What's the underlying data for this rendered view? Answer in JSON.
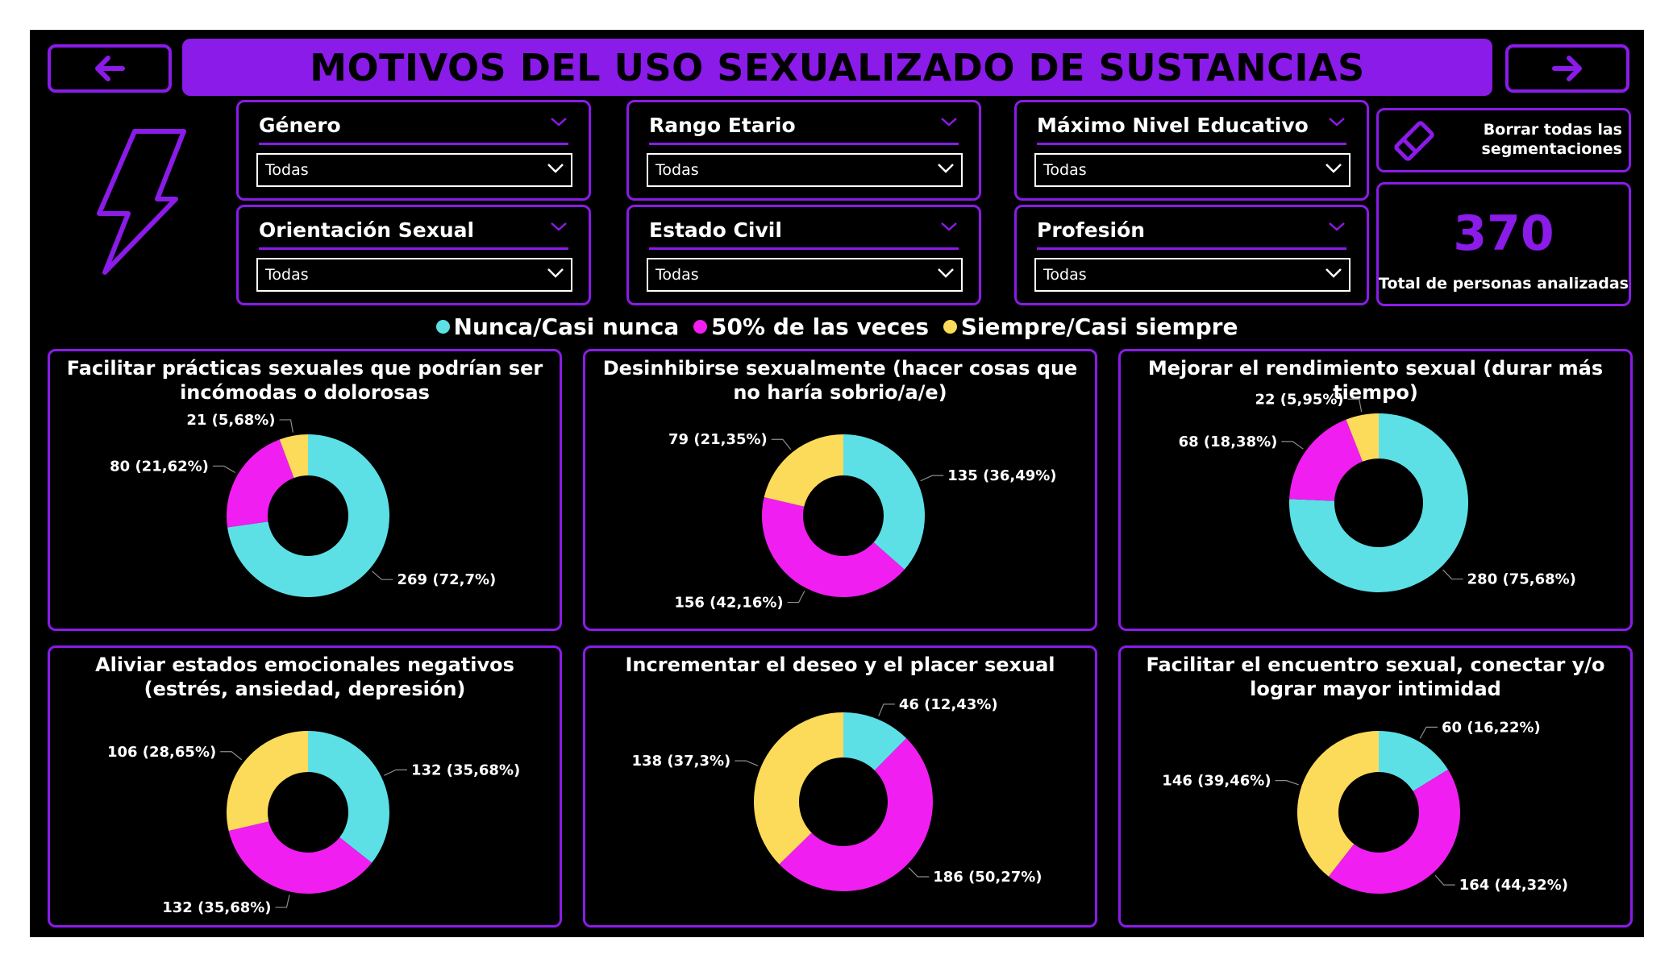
{
  "header": {
    "title": "MOTIVOS DEL USO SEXUALIZADO DE SUSTANCIAS",
    "back_icon": "arrow-left-icon",
    "forward_icon": "arrow-right-icon",
    "logo_icon": "lightning-bolt-icon"
  },
  "filters": [
    {
      "label": "Género",
      "value": "Todas"
    },
    {
      "label": "Rango Etario",
      "value": "Todas"
    },
    {
      "label": "Máximo Nivel Educativo",
      "value": "Todas"
    },
    {
      "label": "Orientación Sexual",
      "value": "Todas"
    },
    {
      "label": "Estado Civil",
      "value": "Todas"
    },
    {
      "label": "Profesión",
      "value": "Todas"
    }
  ],
  "clear_button": {
    "label_line1": "Borrar todas las",
    "label_line2": "segmentaciones",
    "icon": "eraser-icon"
  },
  "kpi": {
    "value": "370",
    "label": "Total de personas analizadas"
  },
  "colors": {
    "accent": "#8a1be8",
    "nunca": "#5ce0e6",
    "mitad": "#f01ef0",
    "siempre": "#fcdb5a",
    "background": "#000000"
  },
  "legend": [
    {
      "label": "Nunca/Casi nunca",
      "color": "#5ce0e6"
    },
    {
      "label": "50% de las veces",
      "color": "#f01ef0"
    },
    {
      "label": "Siempre/Casi siempre",
      "color": "#fcdb5a"
    }
  ],
  "chart_data": [
    {
      "type": "pie",
      "title": "Facilitar prácticas sexuales que podrían ser incómodas o dolorosas",
      "categories": [
        "Nunca/Casi nunca",
        "50% de las veces",
        "Siempre/Casi siempre"
      ],
      "values": [
        269,
        80,
        21
      ],
      "labels": [
        "269 (72,7%)",
        "80 (21,62%)",
        "21 (5,68%)"
      ]
    },
    {
      "type": "pie",
      "title": "Desinhibirse sexualmente (hacer cosas que no haría sobrio/a/e)",
      "categories": [
        "Nunca/Casi nunca",
        "50% de las veces",
        "Siempre/Casi siempre"
      ],
      "values": [
        135,
        156,
        79
      ],
      "labels": [
        "135 (36,49%)",
        "156 (42,16%)",
        "79 (21,35%)"
      ]
    },
    {
      "type": "pie",
      "title": "Mejorar el rendimiento sexual (durar más tiempo)",
      "categories": [
        "Nunca/Casi nunca",
        "50% de las veces",
        "Siempre/Casi siempre"
      ],
      "values": [
        280,
        68,
        22
      ],
      "labels": [
        "280 (75,68%)",
        "68 (18,38%)",
        "22 (5,95%)"
      ]
    },
    {
      "type": "pie",
      "title": "Aliviar estados emocionales negativos (estrés, ansiedad, depresión)",
      "categories": [
        "Nunca/Casi nunca",
        "50% de las veces",
        "Siempre/Casi siempre"
      ],
      "values": [
        132,
        132,
        106
      ],
      "labels": [
        "132 (35,68%)",
        "132 (35,68%)",
        "106 (28,65%)"
      ]
    },
    {
      "type": "pie",
      "title": "Incrementar el deseo y el placer sexual",
      "categories": [
        "Nunca/Casi nunca",
        "50% de las veces",
        "Siempre/Casi siempre"
      ],
      "values": [
        46,
        186,
        138
      ],
      "labels": [
        "46 (12,43%)",
        "186 (50,27%)",
        "138 (37,3%)"
      ]
    },
    {
      "type": "pie",
      "title": "Facilitar el encuentro sexual, conectar y/o lograr mayor intimidad",
      "categories": [
        "Nunca/Casi nunca",
        "50% de las veces",
        "Siempre/Casi siempre"
      ],
      "values": [
        60,
        164,
        146
      ],
      "labels": [
        "60 (16,22%)",
        "164 (44,32%)",
        "146 (39,46%)"
      ]
    }
  ]
}
